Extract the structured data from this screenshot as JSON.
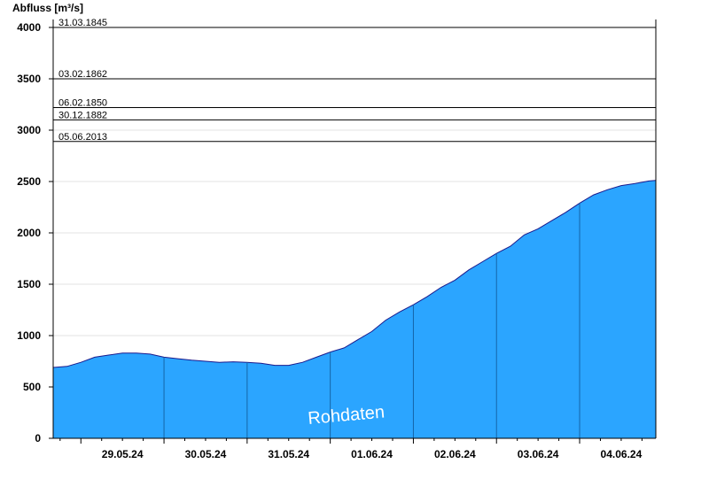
{
  "chart_data": {
    "type": "area",
    "ylabel": "Abfluss [m³/s]",
    "ylim": [
      0,
      4000
    ],
    "yticks": [
      0,
      500,
      1000,
      1500,
      2000,
      2500,
      3000,
      3500,
      4000
    ],
    "ytick_labels": [
      "0",
      "500",
      "1000",
      "1500",
      "2000",
      "2500",
      "3000",
      "3500",
      "4000"
    ],
    "xlim": [
      "2024-05-28T16:00",
      "2024-06-04T22:00"
    ],
    "xticks": [
      {
        "label": "29.05.24",
        "date": "2024-05-29T12:00"
      },
      {
        "label": "30.05.24",
        "date": "2024-05-30T12:00"
      },
      {
        "label": "31.05.24",
        "date": "2024-05-31T12:00"
      },
      {
        "label": "01.06.24",
        "date": "2024-06-01T12:00"
      },
      {
        "label": "02.06.24",
        "date": "2024-06-02T12:00"
      },
      {
        "label": "03.06.24",
        "date": "2024-06-03T12:00"
      },
      {
        "label": "04.06.24",
        "date": "2024-06-04T12:00"
      }
    ],
    "day_boundaries": [
      "2024-05-30T00:00",
      "2024-05-31T00:00",
      "2024-06-01T00:00",
      "2024-06-02T00:00",
      "2024-06-03T00:00",
      "2024-06-04T00:00"
    ],
    "reference_lines": [
      {
        "label": "31.03.1845",
        "value": 4000
      },
      {
        "label": "03.02.1862",
        "value": 3500
      },
      {
        "label": "06.02.1850",
        "value": 3220
      },
      {
        "label": "30.12.1882",
        "value": 3100
      },
      {
        "label": "05.06.2013",
        "value": 2890
      }
    ],
    "series": [
      {
        "x": [
          "2024-05-28T16:00",
          "2024-05-28T20:00",
          "2024-05-29T00:00",
          "2024-05-29T04:00",
          "2024-05-29T08:00",
          "2024-05-29T12:00",
          "2024-05-29T16:00",
          "2024-05-29T20:00",
          "2024-05-30T00:00",
          "2024-05-30T04:00",
          "2024-05-30T08:00",
          "2024-05-30T12:00",
          "2024-05-30T16:00",
          "2024-05-30T20:00",
          "2024-05-31T00:00",
          "2024-05-31T04:00",
          "2024-05-31T08:00",
          "2024-05-31T12:00",
          "2024-05-31T16:00",
          "2024-05-31T20:00",
          "2024-06-01T00:00",
          "2024-06-01T04:00",
          "2024-06-01T08:00",
          "2024-06-01T12:00",
          "2024-06-01T16:00",
          "2024-06-01T20:00",
          "2024-06-02T00:00",
          "2024-06-02T04:00",
          "2024-06-02T08:00",
          "2024-06-02T12:00",
          "2024-06-02T16:00",
          "2024-06-02T20:00",
          "2024-06-03T00:00",
          "2024-06-03T04:00",
          "2024-06-03T08:00",
          "2024-06-03T12:00",
          "2024-06-03T16:00",
          "2024-06-03T20:00",
          "2024-06-04T00:00",
          "2024-06-04T04:00",
          "2024-06-04T08:00",
          "2024-06-04T12:00",
          "2024-06-04T16:00",
          "2024-06-04T20:00",
          "2024-06-04T22:00"
        ],
        "values": [
          690,
          700,
          740,
          790,
          810,
          830,
          830,
          820,
          790,
          775,
          760,
          750,
          740,
          745,
          740,
          730,
          710,
          710,
          740,
          790,
          840,
          880,
          960,
          1040,
          1150,
          1230,
          1300,
          1380,
          1470,
          1540,
          1640,
          1720,
          1800,
          1870,
          1980,
          2040,
          2120,
          2200,
          2290,
          2370,
          2420,
          2460,
          2480,
          2505,
          2510
        ]
      }
    ],
    "annotations": [
      "Rohdaten"
    ],
    "colors": {
      "fill": "#2ba5ff",
      "line": "#1a1a8c",
      "grid": "#e3e3e3"
    },
    "grid": true
  }
}
